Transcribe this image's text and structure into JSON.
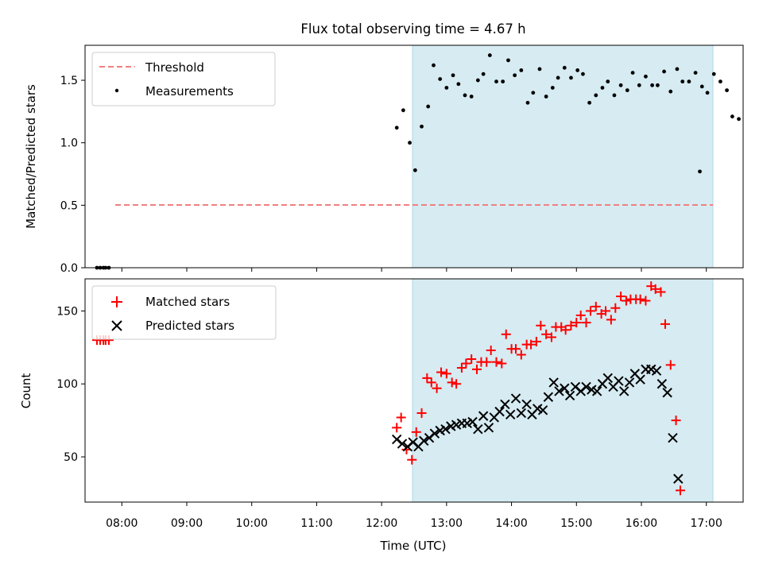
{
  "figure_title": "Flux total observing time = 4.67 h",
  "colors": {
    "threshold": "#f08080",
    "measurements": "#000000",
    "matched": "#ff0000",
    "predicted": "#000000",
    "span": "#add8e6"
  },
  "chart_data": [
    {
      "type": "scatter",
      "panel": "top",
      "ylabel": "Matched/Predicted stars",
      "xlabel": "",
      "ylim": [
        0,
        1.78
      ],
      "yticks": [
        0.0,
        0.5,
        1.0,
        1.5
      ],
      "ytick_labels": [
        "0.0",
        "0.5",
        "1.0",
        "1.5"
      ],
      "xlim": [
        "07:26",
        "17:34"
      ],
      "grid": false,
      "legend_placement": "top-left",
      "shaded_span": {
        "start": "12:14",
        "end": "16:54"
      },
      "threshold": {
        "name": "Threshold",
        "value": 0.5,
        "start": "07:36",
        "end": "16:54",
        "style": "dashed"
      },
      "series": [
        {
          "name": "Measurements",
          "marker": "dot",
          "points": [
            [
              "07:37",
              0
            ],
            [
              "07:40",
              0
            ],
            [
              "07:43",
              0
            ],
            [
              "07:45",
              0
            ],
            [
              "07:48",
              0
            ],
            [
              "12:14",
              1.12
            ],
            [
              "12:20",
              1.26
            ],
            [
              "12:26",
              1.0
            ],
            [
              "12:31",
              0.78
            ],
            [
              "12:37",
              1.13
            ],
            [
              "12:43",
              1.29
            ],
            [
              "12:48",
              1.62
            ],
            [
              "12:54",
              1.51
            ],
            [
              "13:00",
              1.44
            ],
            [
              "13:06",
              1.54
            ],
            [
              "13:11",
              1.47
            ],
            [
              "13:17",
              1.38
            ],
            [
              "13:23",
              1.37
            ],
            [
              "13:29",
              1.5
            ],
            [
              "13:34",
              1.55
            ],
            [
              "13:40",
              1.7
            ],
            [
              "13:46",
              1.49
            ],
            [
              "13:52",
              1.49
            ],
            [
              "13:57",
              1.66
            ],
            [
              "14:03",
              1.54
            ],
            [
              "14:09",
              1.58
            ],
            [
              "14:15",
              1.32
            ],
            [
              "14:20",
              1.4
            ],
            [
              "14:26",
              1.59
            ],
            [
              "14:32",
              1.37
            ],
            [
              "14:38",
              1.44
            ],
            [
              "14:43",
              1.52
            ],
            [
              "14:49",
              1.6
            ],
            [
              "14:55",
              1.52
            ],
            [
              "15:01",
              1.58
            ],
            [
              "15:06",
              1.55
            ],
            [
              "15:12",
              1.32
            ],
            [
              "15:18",
              1.38
            ],
            [
              "15:24",
              1.44
            ],
            [
              "15:29",
              1.49
            ],
            [
              "15:35",
              1.38
            ],
            [
              "15:41",
              1.46
            ],
            [
              "15:47",
              1.42
            ],
            [
              "15:52",
              1.56
            ],
            [
              "15:58",
              1.46
            ],
            [
              "16:04",
              1.53
            ],
            [
              "16:10",
              1.46
            ],
            [
              "16:15",
              1.46
            ],
            [
              "16:21",
              1.57
            ],
            [
              "16:27",
              1.41
            ],
            [
              "16:33",
              1.59
            ],
            [
              "16:38",
              1.49
            ],
            [
              "16:44",
              1.49
            ],
            [
              "16:50",
              1.56
            ],
            [
              "16:56",
              1.45
            ],
            [
              "17:01",
              1.4
            ],
            [
              "17:07",
              1.55
            ],
            [
              "17:13",
              1.49
            ],
            [
              "17:19",
              1.42
            ],
            [
              "17:24",
              1.21
            ],
            [
              "17:30",
              1.19
            ],
            [
              "16:54",
              0.77
            ]
          ]
        }
      ]
    },
    {
      "type": "scatter",
      "panel": "bottom",
      "ylabel": "Count",
      "xlabel": "Time (UTC)",
      "ylim": [
        19,
        172
      ],
      "yticks": [
        50,
        100,
        150
      ],
      "ytick_labels": [
        "50",
        "100",
        "150"
      ],
      "xlim": [
        "07:26",
        "17:34"
      ],
      "xticks": [
        "08:00",
        "09:00",
        "10:00",
        "11:00",
        "12:00",
        "13:00",
        "14:00",
        "15:00",
        "16:00",
        "17:00"
      ],
      "xtick_labels": [
        "08:00",
        "09:00",
        "10:00",
        "11:00",
        "12:00",
        "13:00",
        "14:00",
        "15:00",
        "16:00",
        "17:00"
      ],
      "grid": false,
      "legend_placement": "top-left",
      "shaded_span": {
        "start": "12:14",
        "end": "16:54"
      },
      "series": [
        {
          "name": "Matched stars",
          "marker": "plus",
          "points": [
            [
              "07:37",
              130
            ],
            [
              "07:40",
              130
            ],
            [
              "07:43",
              130
            ],
            [
              "07:45",
              130
            ],
            [
              "07:48",
              130
            ],
            [
              "12:14",
              70
            ],
            [
              "12:18",
              77
            ],
            [
              "12:23",
              55
            ],
            [
              "12:28",
              48
            ],
            [
              "12:32",
              67
            ],
            [
              "12:37",
              80
            ],
            [
              "12:42",
              104
            ],
            [
              "12:46",
              101
            ],
            [
              "12:51",
              97
            ],
            [
              "12:55",
              108
            ],
            [
              "13:00",
              107
            ],
            [
              "13:05",
              101
            ],
            [
              "13:09",
              100
            ],
            [
              "13:14",
              111
            ],
            [
              "13:18",
              114
            ],
            [
              "13:23",
              117
            ],
            [
              "13:28",
              110
            ],
            [
              "13:32",
              115
            ],
            [
              "13:37",
              115
            ],
            [
              "13:41",
              123
            ],
            [
              "13:46",
              115
            ],
            [
              "13:51",
              114
            ],
            [
              "13:55",
              134
            ],
            [
              "14:00",
              124
            ],
            [
              "14:04",
              124
            ],
            [
              "14:09",
              120
            ],
            [
              "14:14",
              127
            ],
            [
              "14:18",
              127
            ],
            [
              "14:23",
              129
            ],
            [
              "14:27",
              140
            ],
            [
              "14:32",
              134
            ],
            [
              "14:37",
              132
            ],
            [
              "14:41",
              139
            ],
            [
              "14:46",
              139
            ],
            [
              "14:50",
              137
            ],
            [
              "14:55",
              140
            ],
            [
              "15:00",
              142
            ],
            [
              "15:04",
              147
            ],
            [
              "15:09",
              142
            ],
            [
              "15:13",
              150
            ],
            [
              "15:18",
              153
            ],
            [
              "15:23",
              148
            ],
            [
              "15:27",
              150
            ],
            [
              "15:32",
              144
            ],
            [
              "15:36",
              152
            ],
            [
              "15:41",
              160
            ],
            [
              "15:46",
              157
            ],
            [
              "15:50",
              158
            ],
            [
              "15:55",
              158
            ],
            [
              "15:59",
              158
            ],
            [
              "16:04",
              157
            ],
            [
              "16:09",
              167
            ],
            [
              "16:13",
              165
            ],
            [
              "16:18",
              163
            ],
            [
              "16:22",
              141
            ],
            [
              "16:27",
              113
            ],
            [
              "16:32",
              75
            ],
            [
              "16:36",
              27
            ]
          ]
        },
        {
          "name": "Predicted stars",
          "marker": "x",
          "points": [
            [
              "12:14",
              62
            ],
            [
              "12:19",
              59
            ],
            [
              "12:24",
              57
            ],
            [
              "12:29",
              60
            ],
            [
              "12:34",
              57
            ],
            [
              "12:39",
              61
            ],
            [
              "12:44",
              63
            ],
            [
              "12:49",
              66
            ],
            [
              "12:54",
              68
            ],
            [
              "12:59",
              69
            ],
            [
              "13:04",
              71
            ],
            [
              "13:09",
              72
            ],
            [
              "13:14",
              73
            ],
            [
              "13:19",
              73
            ],
            [
              "13:24",
              74
            ],
            [
              "13:29",
              69
            ],
            [
              "13:34",
              78
            ],
            [
              "13:39",
              70
            ],
            [
              "13:44",
              77
            ],
            [
              "13:49",
              81
            ],
            [
              "13:54",
              86
            ],
            [
              "13:59",
              79
            ],
            [
              "14:04",
              90
            ],
            [
              "14:09",
              80
            ],
            [
              "14:14",
              86
            ],
            [
              "14:19",
              79
            ],
            [
              "14:24",
              83
            ],
            [
              "14:29",
              82
            ],
            [
              "14:34",
              91
            ],
            [
              "14:39",
              101
            ],
            [
              "14:44",
              95
            ],
            [
              "14:49",
              97
            ],
            [
              "14:54",
              92
            ],
            [
              "14:59",
              98
            ],
            [
              "15:04",
              95
            ],
            [
              "15:09",
              98
            ],
            [
              "15:14",
              96
            ],
            [
              "15:19",
              95
            ],
            [
              "15:24",
              100
            ],
            [
              "15:29",
              104
            ],
            [
              "15:34",
              98
            ],
            [
              "15:39",
              102
            ],
            [
              "15:44",
              95
            ],
            [
              "15:49",
              101
            ],
            [
              "15:54",
              107
            ],
            [
              "15:59",
              103
            ],
            [
              "16:04",
              110
            ],
            [
              "16:09",
              110
            ],
            [
              "16:14",
              109
            ],
            [
              "16:19",
              100
            ],
            [
              "16:24",
              94
            ],
            [
              "16:29",
              63
            ],
            [
              "16:34",
              35
            ]
          ]
        }
      ]
    }
  ]
}
